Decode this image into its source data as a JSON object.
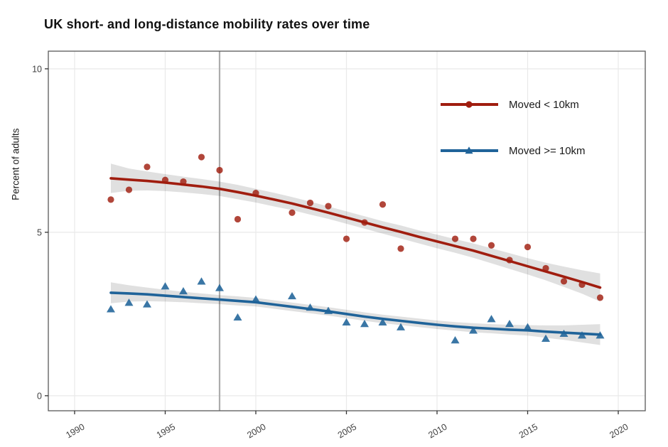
{
  "title": "UK short- and long-distance mobility rates over time",
  "chart_data": {
    "type": "scatter",
    "title": "UK short- and long-distance mobility rates over time",
    "xlabel": "",
    "ylabel": "Percent of adults",
    "x_ticks": [
      1990,
      1995,
      2000,
      2005,
      2010,
      2015,
      2020
    ],
    "y_ticks": [
      0,
      5,
      10
    ],
    "xlim": [
      1988.55,
      2021.49
    ],
    "ylim": [
      -0.46,
      10.54
    ],
    "grid": true,
    "legend_position": "inside-top-right",
    "reference_line": {
      "x": 1998,
      "color": "#ACACAC"
    },
    "band_color": "rgba(0,0,0,0.12)",
    "grid_color": "#E9E9E9",
    "panel_border_color": "#595959",
    "tick_label_color": "#404040",
    "series": [
      {
        "name": "Moved < 10km",
        "color": "#A01D0F",
        "marker": "circle",
        "points": [
          [
            1992,
            6.0
          ],
          [
            1993,
            6.3
          ],
          [
            1994,
            7.0
          ],
          [
            1995,
            6.6
          ],
          [
            1996,
            6.55
          ],
          [
            1997,
            7.3
          ],
          [
            1998,
            6.9
          ],
          [
            1999,
            5.4
          ],
          [
            2000,
            6.2
          ],
          [
            2002,
            5.6
          ],
          [
            2003,
            5.9
          ],
          [
            2004,
            5.8
          ],
          [
            2005,
            4.8
          ],
          [
            2006,
            5.3
          ],
          [
            2007,
            5.85
          ],
          [
            2008,
            4.5
          ],
          [
            2011,
            4.8
          ],
          [
            2012,
            4.8
          ],
          [
            2013,
            4.6
          ],
          [
            2014,
            4.15
          ],
          [
            2015,
            4.55
          ],
          [
            2016,
            3.9
          ],
          [
            2017,
            3.5
          ],
          [
            2018,
            3.4
          ],
          [
            2019,
            3.0
          ]
        ],
        "smooth": [
          [
            1992,
            6.65,
            0.45
          ],
          [
            1993,
            6.61,
            0.34
          ],
          [
            1994,
            6.57,
            0.29
          ],
          [
            1995,
            6.52,
            0.26
          ],
          [
            1996,
            6.46,
            0.24
          ],
          [
            1997,
            6.4,
            0.23
          ],
          [
            1998,
            6.33,
            0.22
          ],
          [
            1999,
            6.23,
            0.22
          ],
          [
            2000,
            6.12,
            0.21
          ],
          [
            2001,
            6.0,
            0.21
          ],
          [
            2002,
            5.88,
            0.2
          ],
          [
            2003,
            5.74,
            0.2
          ],
          [
            2004,
            5.6,
            0.19
          ],
          [
            2005,
            5.45,
            0.19
          ],
          [
            2006,
            5.3,
            0.19
          ],
          [
            2007,
            5.15,
            0.19
          ],
          [
            2008,
            5.01,
            0.2
          ],
          [
            2009,
            4.86,
            0.2
          ],
          [
            2010,
            4.72,
            0.21
          ],
          [
            2011,
            4.58,
            0.21
          ],
          [
            2012,
            4.44,
            0.22
          ],
          [
            2013,
            4.28,
            0.23
          ],
          [
            2014,
            4.12,
            0.24
          ],
          [
            2015,
            3.96,
            0.25
          ],
          [
            2016,
            3.8,
            0.27
          ],
          [
            2017,
            3.64,
            0.31
          ],
          [
            2018,
            3.48,
            0.36
          ],
          [
            2019,
            3.31,
            0.43
          ]
        ]
      },
      {
        "name": "Moved >= 10km",
        "color": "#1F6399",
        "marker": "triangle",
        "points": [
          [
            1992,
            2.65
          ],
          [
            1993,
            2.85
          ],
          [
            1994,
            2.8
          ],
          [
            1995,
            3.35
          ],
          [
            1996,
            3.2
          ],
          [
            1997,
            3.5
          ],
          [
            1998,
            3.3
          ],
          [
            1999,
            2.4
          ],
          [
            2000,
            2.95
          ],
          [
            2002,
            3.05
          ],
          [
            2003,
            2.7
          ],
          [
            2004,
            2.6
          ],
          [
            2005,
            2.25
          ],
          [
            2006,
            2.2
          ],
          [
            2007,
            2.25
          ],
          [
            2008,
            2.1
          ],
          [
            2011,
            1.7
          ],
          [
            2012,
            2.0
          ],
          [
            2013,
            2.35
          ],
          [
            2014,
            2.2
          ],
          [
            2015,
            2.1
          ],
          [
            2016,
            1.75
          ],
          [
            2017,
            1.9
          ],
          [
            2018,
            1.85
          ],
          [
            2019,
            1.85
          ]
        ],
        "smooth": [
          [
            1992,
            3.15,
            0.32
          ],
          [
            1993,
            3.13,
            0.25
          ],
          [
            1994,
            3.1,
            0.21
          ],
          [
            1995,
            3.06,
            0.18
          ],
          [
            1996,
            3.02,
            0.16
          ],
          [
            1997,
            2.98,
            0.15
          ],
          [
            1998,
            2.94,
            0.14
          ],
          [
            1999,
            2.9,
            0.14
          ],
          [
            2000,
            2.86,
            0.13
          ],
          [
            2001,
            2.79,
            0.13
          ],
          [
            2002,
            2.72,
            0.13
          ],
          [
            2003,
            2.65,
            0.13
          ],
          [
            2004,
            2.58,
            0.13
          ],
          [
            2005,
            2.5,
            0.13
          ],
          [
            2006,
            2.42,
            0.13
          ],
          [
            2007,
            2.35,
            0.13
          ],
          [
            2008,
            2.29,
            0.13
          ],
          [
            2009,
            2.23,
            0.13
          ],
          [
            2010,
            2.17,
            0.13
          ],
          [
            2011,
            2.12,
            0.13
          ],
          [
            2012,
            2.08,
            0.14
          ],
          [
            2013,
            2.05,
            0.14
          ],
          [
            2014,
            2.02,
            0.15
          ],
          [
            2015,
            2.0,
            0.16
          ],
          [
            2016,
            1.96,
            0.19
          ],
          [
            2017,
            1.93,
            0.22
          ],
          [
            2018,
            1.9,
            0.27
          ],
          [
            2019,
            1.87,
            0.32
          ]
        ]
      }
    ]
  },
  "legend": {
    "items": [
      {
        "label": "Moved < 10km"
      },
      {
        "label": "Moved >= 10km"
      }
    ]
  }
}
